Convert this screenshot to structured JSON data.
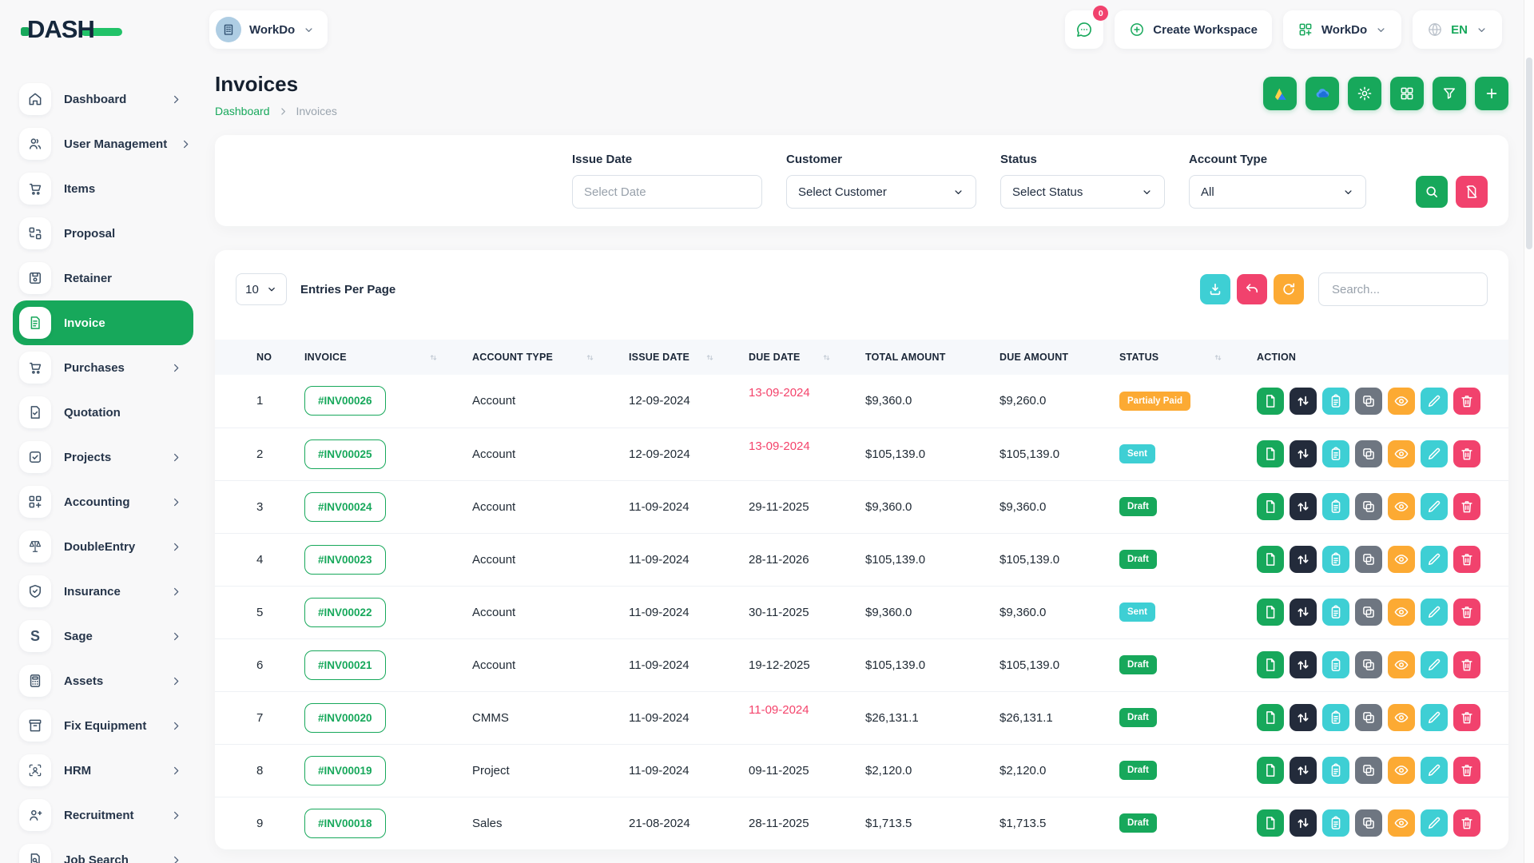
{
  "brand": {
    "name": "DASH"
  },
  "topbar": {
    "workspace": {
      "label": "WorkDo"
    },
    "messages_count": "0",
    "create_workspace": "Create Workspace",
    "apps_menu": "WorkDo",
    "language": "EN"
  },
  "sidebar": {
    "items": [
      {
        "label": "Dashboard",
        "icon": "home-icon",
        "chevron": true,
        "active": false
      },
      {
        "label": "User Management",
        "icon": "users-icon",
        "chevron": true,
        "active": false
      },
      {
        "label": "Items",
        "icon": "cart-icon",
        "chevron": false,
        "active": false
      },
      {
        "label": "Proposal",
        "icon": "proposal-icon",
        "chevron": false,
        "active": false
      },
      {
        "label": "Retainer",
        "icon": "retainer-icon",
        "chevron": false,
        "active": false
      },
      {
        "label": "Invoice",
        "icon": "invoice-icon",
        "chevron": false,
        "active": true
      },
      {
        "label": "Purchases",
        "icon": "cart-icon",
        "chevron": true,
        "active": false
      },
      {
        "label": "Quotation",
        "icon": "quotation-icon",
        "chevron": false,
        "active": false
      },
      {
        "label": "Projects",
        "icon": "projects-icon",
        "chevron": true,
        "active": false
      },
      {
        "label": "Accounting",
        "icon": "accounting-icon",
        "chevron": true,
        "active": false
      },
      {
        "label": "DoubleEntry",
        "icon": "scales-icon",
        "chevron": true,
        "active": false
      },
      {
        "label": "Insurance",
        "icon": "shield-icon",
        "chevron": true,
        "active": false
      },
      {
        "label": "Sage",
        "icon": "sage-icon",
        "chevron": true,
        "active": false
      },
      {
        "label": "Assets",
        "icon": "calculator-icon",
        "chevron": true,
        "active": false
      },
      {
        "label": "Fix Equipment",
        "icon": "archive-icon",
        "chevron": true,
        "active": false
      },
      {
        "label": "HRM",
        "icon": "hrm-icon",
        "chevron": true,
        "active": false
      },
      {
        "label": "Recruitment",
        "icon": "user-plus-icon",
        "chevron": true,
        "active": false
      },
      {
        "label": "Job Search",
        "icon": "job-search-icon",
        "chevron": true,
        "active": false
      }
    ]
  },
  "page": {
    "title": "Invoices",
    "breadcrumb": {
      "home": "Dashboard",
      "current": "Invoices"
    },
    "actions": [
      {
        "name": "google-drive-button",
        "icon": "google-drive-icon"
      },
      {
        "name": "onedrive-button",
        "icon": "onedrive-icon"
      },
      {
        "name": "settings-button",
        "icon": "gear-icon"
      },
      {
        "name": "templates-button",
        "icon": "grid-icon"
      },
      {
        "name": "filter-toggle-button",
        "icon": "filter-icon"
      },
      {
        "name": "create-invoice-button",
        "icon": "plus-icon"
      }
    ]
  },
  "filters": {
    "issue_date_label": "Issue Date",
    "issue_date_placeholder": "Select Date",
    "customer_label": "Customer",
    "customer_value": "Select Customer",
    "status_label": "Status",
    "status_value": "Select Status",
    "account_type_label": "Account Type",
    "account_type_value": "All",
    "buttons": [
      {
        "name": "apply-filter-button",
        "icon": "search-icon",
        "color": "#17a85b"
      },
      {
        "name": "clear-filter-button",
        "icon": "file-slash-icon",
        "color": "#f1426d"
      }
    ]
  },
  "controls": {
    "entries_value": "10",
    "entries_label": "Entries Per Page",
    "search_placeholder": "Search...",
    "buttons": [
      {
        "name": "export-button",
        "icon": "download-icon",
        "color": "#3ecfd4"
      },
      {
        "name": "undo-button",
        "icon": "undo-icon",
        "color": "#f1426d"
      },
      {
        "name": "refresh-button",
        "icon": "refresh-icon",
        "color": "#fcaa33"
      }
    ]
  },
  "table": {
    "columns": [
      {
        "label": "NO",
        "sortable": false
      },
      {
        "label": "INVOICE",
        "sortable": true
      },
      {
        "label": "ACCOUNT TYPE",
        "sortable": true
      },
      {
        "label": "ISSUE DATE",
        "sortable": true
      },
      {
        "label": "DUE DATE",
        "sortable": true
      },
      {
        "label": "TOTAL AMOUNT",
        "sortable": false
      },
      {
        "label": "DUE AMOUNT",
        "sortable": false
      },
      {
        "label": "STATUS",
        "sortable": true
      },
      {
        "label": "ACTION",
        "sortable": false
      }
    ],
    "rows": [
      {
        "no": "1",
        "invoice": "#INV00026",
        "account_type": "Account",
        "issue_date": "12-09-2024",
        "due_date": "13-09-2024",
        "overdue": true,
        "total_amount": "$9,360.0",
        "due_amount": "$9,260.0",
        "status": "Partialy Paid"
      },
      {
        "no": "2",
        "invoice": "#INV00025",
        "account_type": "Account",
        "issue_date": "12-09-2024",
        "due_date": "13-09-2024",
        "overdue": true,
        "total_amount": "$105,139.0",
        "due_amount": "$105,139.0",
        "status": "Sent"
      },
      {
        "no": "3",
        "invoice": "#INV00024",
        "account_type": "Account",
        "issue_date": "11-09-2024",
        "due_date": "29-11-2025",
        "overdue": false,
        "total_amount": "$9,360.0",
        "due_amount": "$9,360.0",
        "status": "Draft"
      },
      {
        "no": "4",
        "invoice": "#INV00023",
        "account_type": "Account",
        "issue_date": "11-09-2024",
        "due_date": "28-11-2026",
        "overdue": false,
        "total_amount": "$105,139.0",
        "due_amount": "$105,139.0",
        "status": "Draft"
      },
      {
        "no": "5",
        "invoice": "#INV00022",
        "account_type": "Account",
        "issue_date": "11-09-2024",
        "due_date": "30-11-2025",
        "overdue": false,
        "total_amount": "$9,360.0",
        "due_amount": "$9,360.0",
        "status": "Sent"
      },
      {
        "no": "6",
        "invoice": "#INV00021",
        "account_type": "Account",
        "issue_date": "11-09-2024",
        "due_date": "19-12-2025",
        "overdue": false,
        "total_amount": "$105,139.0",
        "due_amount": "$105,139.0",
        "status": "Draft"
      },
      {
        "no": "7",
        "invoice": "#INV00020",
        "account_type": "CMMS",
        "issue_date": "11-09-2024",
        "due_date": "11-09-2024",
        "overdue": true,
        "total_amount": "$26,131.1",
        "due_amount": "$26,131.1",
        "status": "Draft"
      },
      {
        "no": "8",
        "invoice": "#INV00019",
        "account_type": "Project",
        "issue_date": "11-09-2024",
        "due_date": "09-11-2025",
        "overdue": false,
        "total_amount": "$2,120.0",
        "due_amount": "$2,120.0",
        "status": "Draft"
      },
      {
        "no": "9",
        "invoice": "#INV00018",
        "account_type": "Sales",
        "issue_date": "21-08-2024",
        "due_date": "28-11-2025",
        "overdue": false,
        "total_amount": "$1,713.5",
        "due_amount": "$1,713.5",
        "status": "Draft"
      }
    ],
    "row_actions": [
      {
        "name": "payment-reminder-button",
        "icon": "file-icon",
        "color": "#17a85b"
      },
      {
        "name": "convert-button",
        "icon": "swap-icon",
        "color": "#232b3b"
      },
      {
        "name": "notes-button",
        "icon": "clipboard-icon",
        "color": "#3ecfd4"
      },
      {
        "name": "duplicate-button",
        "icon": "copy-icon",
        "color": "#6e7681"
      },
      {
        "name": "view-button",
        "icon": "eye-icon",
        "color": "#fcaa33"
      },
      {
        "name": "edit-button",
        "icon": "pencil-icon",
        "color": "#3ecfd4"
      },
      {
        "name": "delete-button",
        "icon": "trash-icon",
        "color": "#f1426d"
      }
    ],
    "status_colors": {
      "Partialy Paid": "#fcaa33",
      "Sent": "#3ecfd4",
      "Draft": "#17a85b"
    }
  }
}
